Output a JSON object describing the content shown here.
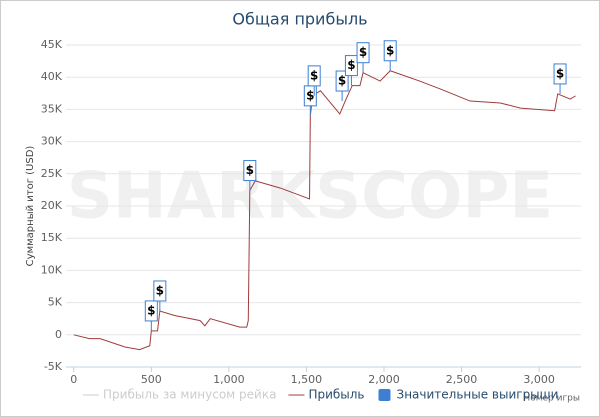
{
  "chart_data": {
    "type": "line",
    "title": "Общая прибыль",
    "watermark": "SHARKSCOPE",
    "y_label": "Суммарный итог (USD)",
    "x_label": "Номер игры",
    "xlim": [
      -50,
      3270
    ],
    "xticks": [
      0,
      500,
      {
        "value": 1000,
        "label": "1,000"
      },
      {
        "value": 1500,
        "label": "1,500"
      },
      {
        "value": 2000,
        "label": "2,000"
      },
      {
        "value": 2500,
        "label": "2,500"
      },
      {
        "value": 3000,
        "label": "3,000"
      }
    ],
    "ylim": [
      -5000,
      45000
    ],
    "yticks": [
      {
        "value": -5000,
        "label": "-5K"
      },
      0,
      {
        "value": 5000,
        "label": "5K"
      },
      {
        "value": 10000,
        "label": "10K"
      },
      {
        "value": 15000,
        "label": "15K"
      },
      {
        "value": 20000,
        "label": "20K"
      },
      {
        "value": 25000,
        "label": "25K"
      },
      {
        "value": 30000,
        "label": "30K"
      },
      {
        "value": 35000,
        "label": "35K"
      },
      {
        "value": 40000,
        "label": "40K"
      },
      {
        "value": 45000,
        "label": "45K"
      }
    ],
    "grid": true,
    "series": [
      {
        "name": "Прибыль за минусом рейка",
        "color": "#cccccc",
        "visible": false
      },
      {
        "name": "Прибыль",
        "color": "#a03c3c",
        "x": [
          0,
          100,
          170,
          330,
          425,
          490,
          500,
          540,
          555,
          650,
          815,
          845,
          880,
          1070,
          1115,
          1125,
          1135,
          1170,
          1330,
          1520,
          1525,
          1540,
          1590,
          1715,
          1750,
          1795,
          1845,
          1865,
          1975,
          2040,
          2230,
          2360,
          2555,
          2750,
          2880,
          3100,
          3120,
          3200,
          3235
        ],
        "values": [
          0,
          -600,
          -600,
          -1900,
          -2300,
          -1700,
          600,
          600,
          3700,
          3000,
          2200,
          1400,
          2500,
          1200,
          1200,
          2200,
          22400,
          23900,
          22800,
          21100,
          34000,
          37100,
          37900,
          34300,
          36300,
          38700,
          38700,
          40700,
          39400,
          41000,
          39400,
          38200,
          36300,
          36000,
          35200,
          34800,
          37400,
          36600,
          37100
        ]
      },
      {
        "name": "Значительные выигрыши",
        "color": "#3d7fd4",
        "flag": "$",
        "x": [
          500,
          555,
          1135,
          1525,
          1550,
          1730,
          1790,
          1865,
          2040,
          3135
        ],
        "values": [
          600,
          3700,
          22400,
          34000,
          37100,
          36300,
          38700,
          40700,
          41000,
          37400
        ]
      }
    ],
    "legend": "bottom"
  }
}
